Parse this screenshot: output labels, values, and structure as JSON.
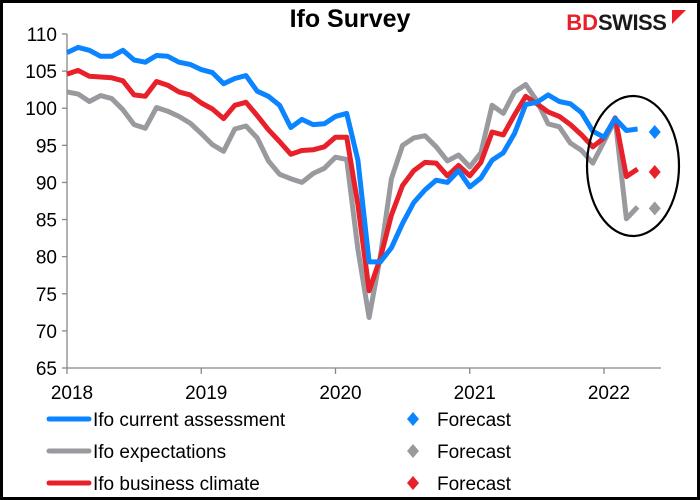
{
  "logo": {
    "part1": "BD",
    "part2": "SWISS",
    "colors": {
      "part1": "#e8202a",
      "part2": "#1a1a1a"
    }
  },
  "chart_data": {
    "type": "line",
    "title": "Ifo Survey",
    "xlabel": "",
    "ylabel": "",
    "ylim": [
      65,
      110
    ],
    "yticks": [
      "65",
      "70",
      "75",
      "80",
      "85",
      "90",
      "95",
      "100",
      "105",
      "110"
    ],
    "xticks": [
      "2018",
      "2019",
      "2020",
      "2021",
      "2022"
    ],
    "x_start": "2018-01",
    "x_frequency": "monthly",
    "grid": false,
    "legend_placement": "bottom",
    "series": [
      {
        "name": "Ifo current assessment",
        "color": "#0a84ff",
        "values": [
          107.5,
          108.2,
          107.8,
          107.0,
          107.0,
          107.8,
          106.5,
          106.2,
          107.1,
          107.0,
          106.2,
          105.9,
          105.2,
          104.8,
          103.3,
          104.0,
          104.4,
          102.3,
          101.6,
          100.4,
          97.4,
          98.5,
          97.8,
          97.9,
          98.9,
          99.3,
          93.0,
          79.3,
          79.3,
          81.2,
          84.5,
          87.3,
          89.0,
          90.3,
          90.0,
          91.6,
          89.4,
          90.6,
          93.0,
          94.0,
          96.6,
          100.5,
          100.8,
          101.8,
          100.9,
          100.6,
          99.4,
          96.9,
          96.1,
          98.6,
          97.0,
          97.2
        ],
        "forecast": {
          "label": "Forecast",
          "month": "2022-05",
          "value": 96.8
        }
      },
      {
        "name": "Ifo expectations",
        "color": "#999a9e",
        "values": [
          102.2,
          101.9,
          100.9,
          101.7,
          101.3,
          99.8,
          97.8,
          97.3,
          100.1,
          99.6,
          98.9,
          98.0,
          96.6,
          95.1,
          94.2,
          97.2,
          97.6,
          96.0,
          92.9,
          91.1,
          90.5,
          90.0,
          91.2,
          91.9,
          93.4,
          93.1,
          81.0,
          71.8,
          80.0,
          90.5,
          95.0,
          96.0,
          96.3,
          94.8,
          92.9,
          93.7,
          92.1,
          94.0,
          100.4,
          99.3,
          102.2,
          103.2,
          101.0,
          97.9,
          97.5,
          95.3,
          94.3,
          92.6,
          95.5,
          98.5,
          85.1,
          86.7
        ],
        "forecast": {
          "label": "Forecast",
          "month": "2022-05",
          "value": 86.5
        }
      },
      {
        "name": "Ifo business climate",
        "color": "#e8202a",
        "values": [
          104.6,
          105.1,
          104.3,
          104.2,
          104.1,
          103.7,
          101.8,
          101.6,
          103.6,
          103.1,
          102.2,
          101.8,
          100.7,
          99.9,
          98.6,
          100.4,
          100.8,
          99.0,
          97.1,
          95.5,
          93.8,
          94.3,
          94.4,
          94.8,
          96.1,
          96.1,
          87.0,
          75.4,
          79.8,
          85.6,
          89.6,
          91.6,
          92.7,
          92.6,
          90.9,
          92.3,
          90.9,
          92.7,
          96.8,
          96.4,
          99.1,
          101.6,
          100.6,
          99.5,
          98.9,
          97.8,
          96.4,
          94.8,
          96.0,
          98.7,
          90.8,
          91.8
        ],
        "forecast": {
          "label": "Forecast",
          "month": "2022-05",
          "value": 91.4
        }
      }
    ],
    "annotations": [
      "ellipse highlighting early-2022 drop and forecasts"
    ]
  }
}
